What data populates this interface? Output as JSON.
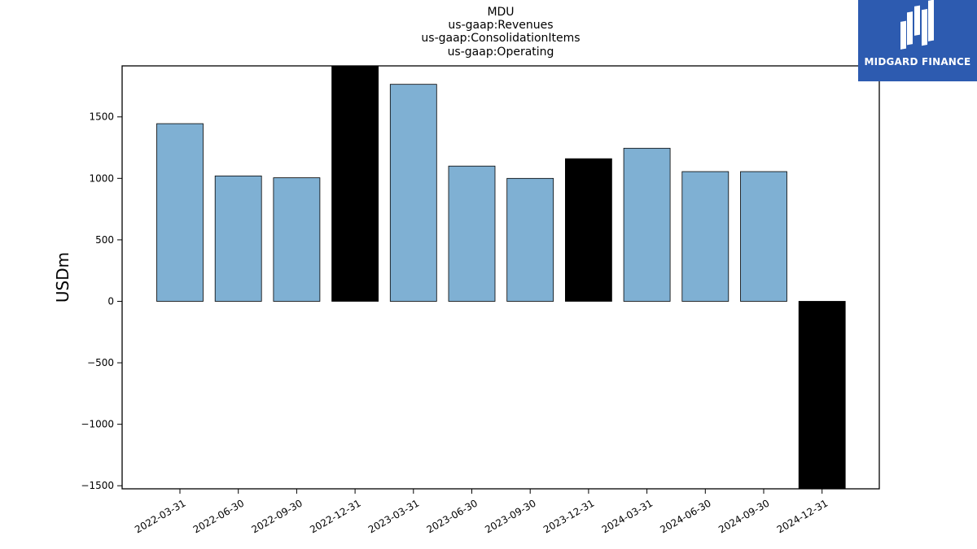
{
  "chart_data": {
    "type": "bar",
    "title_lines": [
      "MDU",
      "us-gaap:Revenues",
      "us-gaap:ConsolidationItems",
      "us-gaap:Operating"
    ],
    "xlabel": "",
    "ylabel": "USDm",
    "categories": [
      "2022-03-31",
      "2022-06-30",
      "2022-09-30",
      "2022-12-31",
      "2023-03-31",
      "2023-06-30",
      "2023-09-30",
      "2023-12-31",
      "2024-03-31",
      "2024-06-30",
      "2024-09-30",
      "2024-12-31"
    ],
    "values": [
      1445,
      1020,
      1005,
      1915,
      1765,
      1100,
      1000,
      1160,
      1245,
      1055,
      1055,
      -1520
    ],
    "highlight": [
      false,
      false,
      false,
      true,
      false,
      false,
      false,
      true,
      false,
      false,
      false,
      true
    ],
    "colors": {
      "normal": "#7fb0d3",
      "highlight": "#000000"
    },
    "ylim": [
      -1525,
      1915
    ],
    "yticks": [
      -1500,
      -1000,
      -500,
      0,
      500,
      1000,
      1500
    ],
    "grid": false,
    "legend": "none"
  },
  "logo": {
    "text": "MIDGARD FINANCE",
    "icon": "midgard-logo-icon",
    "background": "#2d5bb0"
  }
}
